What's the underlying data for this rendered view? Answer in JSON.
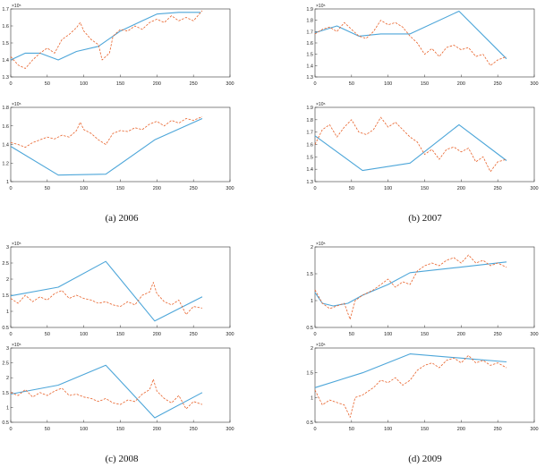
{
  "colors": {
    "model": "#4da6d9",
    "actual": "#e8622a",
    "axis": "#333333"
  },
  "captions": {
    "a": "(a) 2006",
    "b": "(b) 2007",
    "c": "(c) 2008",
    "d": "(d) 2009"
  },
  "chart_data": [
    {
      "type": "line",
      "group": "a",
      "exponent": "×10⁵",
      "xlim": [
        0,
        300
      ],
      "ylim": [
        1.3,
        1.7
      ],
      "xticks": [
        0,
        50,
        100,
        150,
        200,
        250,
        300
      ],
      "yticks": [
        1.3,
        1.4,
        1.5,
        1.6,
        1.7
      ],
      "series": [
        {
          "style": "solid",
          "x": [
            0,
            20,
            40,
            65,
            90,
            120,
            150,
            180,
            200,
            230,
            260
          ],
          "y": [
            1.4,
            1.44,
            1.44,
            1.4,
            1.45,
            1.48,
            1.57,
            1.63,
            1.67,
            1.68,
            1.68
          ]
        },
        {
          "style": "dashed",
          "x": [
            0,
            10,
            20,
            30,
            40,
            50,
            60,
            70,
            80,
            90,
            95,
            100,
            110,
            120,
            125,
            135,
            140,
            150,
            160,
            170,
            180,
            190,
            200,
            210,
            220,
            230,
            240,
            250,
            262
          ],
          "y": [
            1.42,
            1.37,
            1.35,
            1.4,
            1.44,
            1.47,
            1.44,
            1.52,
            1.55,
            1.59,
            1.62,
            1.57,
            1.52,
            1.49,
            1.4,
            1.44,
            1.54,
            1.58,
            1.57,
            1.6,
            1.58,
            1.62,
            1.64,
            1.62,
            1.66,
            1.63,
            1.65,
            1.63,
            1.69
          ]
        }
      ]
    },
    {
      "type": "line",
      "group": "a",
      "exponent": "×10⁵",
      "xlim": [
        0,
        300
      ],
      "ylim": [
        1,
        1.8
      ],
      "xticks": [
        0,
        50,
        100,
        150,
        200,
        250,
        300
      ],
      "yticks": [
        1,
        1.2,
        1.4,
        1.6,
        1.8
      ],
      "series": [
        {
          "style": "solid",
          "x": [
            0,
            65,
            130,
            197,
            262
          ],
          "y": [
            1.38,
            1.07,
            1.08,
            1.45,
            1.68
          ]
        },
        {
          "style": "dashed",
          "x": [
            0,
            10,
            20,
            30,
            40,
            50,
            60,
            70,
            80,
            90,
            95,
            100,
            110,
            120,
            130,
            140,
            150,
            160,
            170,
            180,
            190,
            200,
            210,
            220,
            230,
            240,
            250,
            262
          ],
          "y": [
            1.42,
            1.4,
            1.37,
            1.42,
            1.45,
            1.48,
            1.46,
            1.5,
            1.48,
            1.55,
            1.64,
            1.56,
            1.52,
            1.45,
            1.4,
            1.52,
            1.55,
            1.54,
            1.58,
            1.56,
            1.62,
            1.65,
            1.6,
            1.66,
            1.63,
            1.68,
            1.66,
            1.7
          ]
        }
      ]
    },
    {
      "type": "line",
      "group": "b",
      "exponent": "×10⁵",
      "xlim": [
        0,
        300
      ],
      "ylim": [
        1.3,
        1.9
      ],
      "xticks": [
        0,
        50,
        100,
        150,
        200,
        250,
        300
      ],
      "yticks": [
        1.3,
        1.4,
        1.5,
        1.6,
        1.7,
        1.8,
        1.9
      ],
      "series": [
        {
          "style": "solid",
          "x": [
            0,
            30,
            60,
            90,
            130,
            197,
            262
          ],
          "y": [
            1.69,
            1.75,
            1.66,
            1.68,
            1.68,
            1.88,
            1.46
          ]
        },
        {
          "style": "dashed",
          "x": [
            0,
            10,
            20,
            30,
            40,
            50,
            60,
            70,
            80,
            90,
            100,
            110,
            120,
            130,
            140,
            150,
            160,
            170,
            180,
            190,
            200,
            210,
            220,
            230,
            240,
            250,
            262
          ],
          "y": [
            1.68,
            1.72,
            1.74,
            1.7,
            1.78,
            1.72,
            1.66,
            1.64,
            1.7,
            1.8,
            1.76,
            1.78,
            1.74,
            1.66,
            1.6,
            1.5,
            1.55,
            1.48,
            1.56,
            1.58,
            1.54,
            1.56,
            1.48,
            1.5,
            1.4,
            1.45,
            1.48
          ]
        }
      ]
    },
    {
      "type": "line",
      "group": "b",
      "exponent": "×10⁵",
      "xlim": [
        0,
        300
      ],
      "ylim": [
        1.3,
        1.9
      ],
      "xticks": [
        0,
        50,
        100,
        150,
        200,
        250,
        300
      ],
      "yticks": [
        1.3,
        1.4,
        1.5,
        1.6,
        1.7,
        1.8,
        1.9
      ],
      "series": [
        {
          "style": "solid",
          "x": [
            0,
            65,
            130,
            197,
            262
          ],
          "y": [
            1.67,
            1.39,
            1.45,
            1.76,
            1.47
          ]
        },
        {
          "style": "dashed",
          "x": [
            0,
            10,
            20,
            30,
            40,
            50,
            60,
            70,
            80,
            90,
            100,
            110,
            120,
            130,
            140,
            150,
            160,
            170,
            180,
            190,
            200,
            210,
            220,
            230,
            240,
            250,
            262
          ],
          "y": [
            1.6,
            1.72,
            1.76,
            1.66,
            1.74,
            1.8,
            1.7,
            1.68,
            1.72,
            1.82,
            1.74,
            1.78,
            1.72,
            1.66,
            1.62,
            1.52,
            1.56,
            1.48,
            1.56,
            1.58,
            1.54,
            1.57,
            1.46,
            1.5,
            1.38,
            1.46,
            1.48
          ]
        }
      ]
    },
    {
      "type": "line",
      "group": "c",
      "exponent": "×10⁵",
      "xlim": [
        0,
        300
      ],
      "ylim": [
        0.5,
        3
      ],
      "xticks": [
        0,
        50,
        100,
        150,
        200,
        250,
        300
      ],
      "yticks": [
        0.5,
        1,
        1.5,
        2,
        2.5,
        3
      ],
      "series": [
        {
          "style": "solid",
          "x": [
            0,
            65,
            130,
            197,
            262
          ],
          "y": [
            1.48,
            1.75,
            2.55,
            0.7,
            1.45
          ]
        },
        {
          "style": "dashed",
          "x": [
            0,
            10,
            20,
            30,
            40,
            50,
            60,
            70,
            80,
            90,
            100,
            110,
            120,
            130,
            140,
            150,
            160,
            170,
            180,
            190,
            195,
            200,
            210,
            220,
            230,
            240,
            250,
            262
          ],
          "y": [
            1.4,
            1.25,
            1.5,
            1.3,
            1.45,
            1.35,
            1.55,
            1.65,
            1.4,
            1.5,
            1.4,
            1.35,
            1.25,
            1.3,
            1.2,
            1.15,
            1.3,
            1.2,
            1.5,
            1.6,
            1.9,
            1.55,
            1.3,
            1.2,
            1.35,
            0.9,
            1.15,
            1.1
          ]
        }
      ]
    },
    {
      "type": "line",
      "group": "c",
      "exponent": "×10⁵",
      "xlim": [
        0,
        300
      ],
      "ylim": [
        0.5,
        3
      ],
      "xticks": [
        0,
        50,
        100,
        150,
        200,
        250,
        300
      ],
      "yticks": [
        0.5,
        1,
        1.5,
        2,
        2.5,
        3
      ],
      "series": [
        {
          "style": "solid",
          "x": [
            0,
            65,
            130,
            197,
            262
          ],
          "y": [
            1.45,
            1.75,
            2.42,
            0.65,
            1.5
          ]
        },
        {
          "style": "dashed",
          "x": [
            0,
            10,
            20,
            30,
            40,
            50,
            60,
            70,
            80,
            90,
            100,
            110,
            120,
            130,
            140,
            150,
            160,
            170,
            180,
            190,
            195,
            200,
            210,
            220,
            230,
            240,
            250,
            262
          ],
          "y": [
            1.5,
            1.4,
            1.6,
            1.35,
            1.5,
            1.4,
            1.55,
            1.65,
            1.4,
            1.45,
            1.35,
            1.3,
            1.2,
            1.3,
            1.15,
            1.1,
            1.25,
            1.2,
            1.45,
            1.6,
            1.95,
            1.55,
            1.3,
            1.15,
            1.4,
            0.95,
            1.2,
            1.1
          ]
        }
      ]
    },
    {
      "type": "line",
      "group": "d",
      "exponent": "×10⁵",
      "xlim": [
        0,
        300
      ],
      "ylim": [
        0.5,
        2
      ],
      "xticks": [
        0,
        50,
        100,
        150,
        200,
        250,
        300
      ],
      "yticks": [
        0.5,
        1,
        1.5,
        2
      ],
      "series": [
        {
          "style": "solid",
          "x": [
            0,
            10,
            25,
            45,
            65,
            100,
            130,
            197,
            262
          ],
          "y": [
            1.15,
            0.95,
            0.9,
            0.95,
            1.1,
            1.3,
            1.52,
            1.62,
            1.72
          ]
        },
        {
          "style": "dashed",
          "x": [
            0,
            10,
            20,
            30,
            40,
            48,
            55,
            65,
            80,
            90,
            100,
            110,
            120,
            130,
            140,
            150,
            160,
            170,
            180,
            190,
            200,
            210,
            220,
            230,
            240,
            250,
            262
          ],
          "y": [
            1.2,
            0.95,
            0.85,
            0.9,
            0.95,
            0.65,
            1.0,
            1.1,
            1.2,
            1.3,
            1.4,
            1.25,
            1.35,
            1.3,
            1.55,
            1.65,
            1.7,
            1.65,
            1.75,
            1.8,
            1.7,
            1.85,
            1.7,
            1.75,
            1.65,
            1.7,
            1.62
          ]
        }
      ]
    },
    {
      "type": "line",
      "group": "d",
      "exponent": "×10⁵",
      "xlim": [
        0,
        300
      ],
      "ylim": [
        0.5,
        2
      ],
      "xticks": [
        0,
        50,
        100,
        150,
        200,
        250,
        300
      ],
      "yticks": [
        0.5,
        1,
        1.5,
        2
      ],
      "series": [
        {
          "style": "solid",
          "x": [
            0,
            65,
            130,
            197,
            262
          ],
          "y": [
            1.2,
            1.5,
            1.88,
            1.8,
            1.72
          ]
        },
        {
          "style": "dashed",
          "x": [
            0,
            10,
            20,
            30,
            40,
            48,
            55,
            65,
            80,
            90,
            100,
            110,
            120,
            130,
            140,
            150,
            160,
            170,
            180,
            190,
            200,
            210,
            220,
            230,
            240,
            250,
            262
          ],
          "y": [
            1.15,
            0.85,
            0.95,
            0.9,
            0.85,
            0.6,
            1.0,
            1.05,
            1.2,
            1.35,
            1.3,
            1.4,
            1.25,
            1.35,
            1.55,
            1.65,
            1.7,
            1.6,
            1.75,
            1.8,
            1.7,
            1.85,
            1.7,
            1.75,
            1.65,
            1.7,
            1.6
          ]
        }
      ]
    }
  ]
}
